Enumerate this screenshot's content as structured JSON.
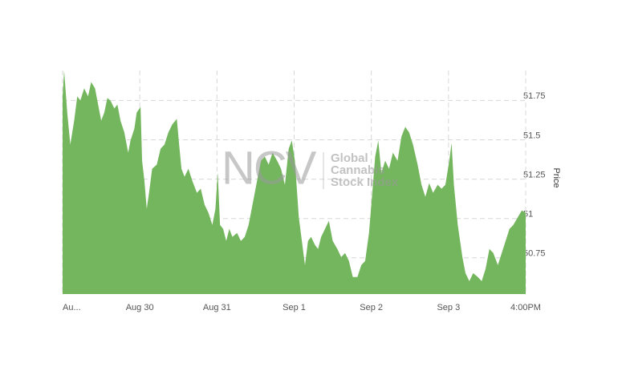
{
  "chart_data": {
    "type": "area",
    "y_label": "Price",
    "watermark": {
      "logo": "NCV",
      "lines": [
        "Global",
        "Cannabis",
        "Stock Index"
      ]
    },
    "color": "#74b65e",
    "x": [
      0,
      0.02,
      0.06,
      0.1,
      0.15,
      0.19,
      0.23,
      0.28,
      0.33,
      0.37,
      0.42,
      0.46,
      0.5,
      0.54,
      0.58,
      0.62,
      0.67,
      0.71,
      0.75,
      0.8,
      0.85,
      0.88,
      0.93,
      0.96,
      1.01,
      1.03,
      1.06,
      1.09,
      1.12,
      1.16,
      1.22,
      1.27,
      1.32,
      1.37,
      1.42,
      1.48,
      1.51,
      1.54,
      1.58,
      1.63,
      1.68,
      1.74,
      1.79,
      1.84,
      1.89,
      1.94,
      1.98,
      2.01,
      2.04,
      2.08,
      2.12,
      2.16,
      2.2,
      2.26,
      2.31,
      2.36,
      2.41,
      2.46,
      2.52,
      2.57,
      2.62,
      2.67,
      2.72,
      2.78,
      2.83,
      2.88,
      2.93,
      2.97,
      3.01,
      3.06,
      3.1,
      3.14,
      3.18,
      3.22,
      3.27,
      3.31,
      3.35,
      3.4,
      3.45,
      3.5,
      3.56,
      3.61,
      3.66,
      3.71,
      3.76,
      3.82,
      3.87,
      3.92,
      3.97,
      4.0,
      4.05,
      4.09,
      4.13,
      4.18,
      4.23,
      4.28,
      4.34,
      4.39,
      4.44,
      4.49,
      4.54,
      4.6,
      4.65,
      4.7,
      4.75,
      4.8,
      4.86,
      4.91,
      4.96,
      5.01,
      5.04,
      5.07,
      5.12,
      5.15,
      5.18,
      5.22,
      5.27,
      5.32,
      5.38,
      5.43,
      5.48,
      5.53,
      5.58,
      5.64,
      5.69,
      5.74,
      5.79,
      5.84,
      5.9,
      5.95,
      6.0
    ],
    "values": [
      51.776,
      51.939,
      51.673,
      51.469,
      51.622,
      51.776,
      51.75,
      51.827,
      51.776,
      51.867,
      51.827,
      51.724,
      51.622,
      51.673,
      51.765,
      51.75,
      51.699,
      51.724,
      51.622,
      51.546,
      51.418,
      51.495,
      51.571,
      51.673,
      51.709,
      51.367,
      51.24,
      51.061,
      51.163,
      51.316,
      51.342,
      51.444,
      51.469,
      51.546,
      51.597,
      51.633,
      51.469,
      51.316,
      51.265,
      51.316,
      51.24,
      51.163,
      51.189,
      51.087,
      51.036,
      50.959,
      51.061,
      51.291,
      50.959,
      50.934,
      50.857,
      50.934,
      50.883,
      50.908,
      50.857,
      50.883,
      50.959,
      51.087,
      51.24,
      51.367,
      51.393,
      51.342,
      51.418,
      51.367,
      51.316,
      51.214,
      51.444,
      51.495,
      51.367,
      51.01,
      50.857,
      50.704,
      50.857,
      50.883,
      50.832,
      50.806,
      50.883,
      50.934,
      50.985,
      50.857,
      50.806,
      50.755,
      50.781,
      50.73,
      50.628,
      50.628,
      50.704,
      50.73,
      50.908,
      51.087,
      51.393,
      51.495,
      51.291,
      51.367,
      51.316,
      51.418,
      51.367,
      51.52,
      51.582,
      51.546,
      51.469,
      51.342,
      51.214,
      51.138,
      51.224,
      51.163,
      51.214,
      51.189,
      51.214,
      51.367,
      51.48,
      51.214,
      50.959,
      50.857,
      50.755,
      50.653,
      50.602,
      50.653,
      50.628,
      50.602,
      50.679,
      50.806,
      50.781,
      50.704,
      50.781,
      50.857,
      50.934,
      50.959,
      51.01,
      51.051,
      51.036
    ],
    "xlim": [
      0,
      6
    ],
    "xticks": [
      {
        "value": 0,
        "label": "Au..."
      },
      {
        "value": 1,
        "label": "Aug 30"
      },
      {
        "value": 2,
        "label": "Aug 31"
      },
      {
        "value": 3,
        "label": "Sep 1"
      },
      {
        "value": 4,
        "label": "Sep 2"
      },
      {
        "value": 5,
        "label": "Sep 3"
      },
      {
        "value": 6,
        "label": "4:00PM"
      }
    ],
    "ylim": [
      50.52,
      51.94
    ],
    "yticks": [
      50.75,
      51,
      51.25,
      51.5,
      51.75
    ],
    "grid": true
  }
}
